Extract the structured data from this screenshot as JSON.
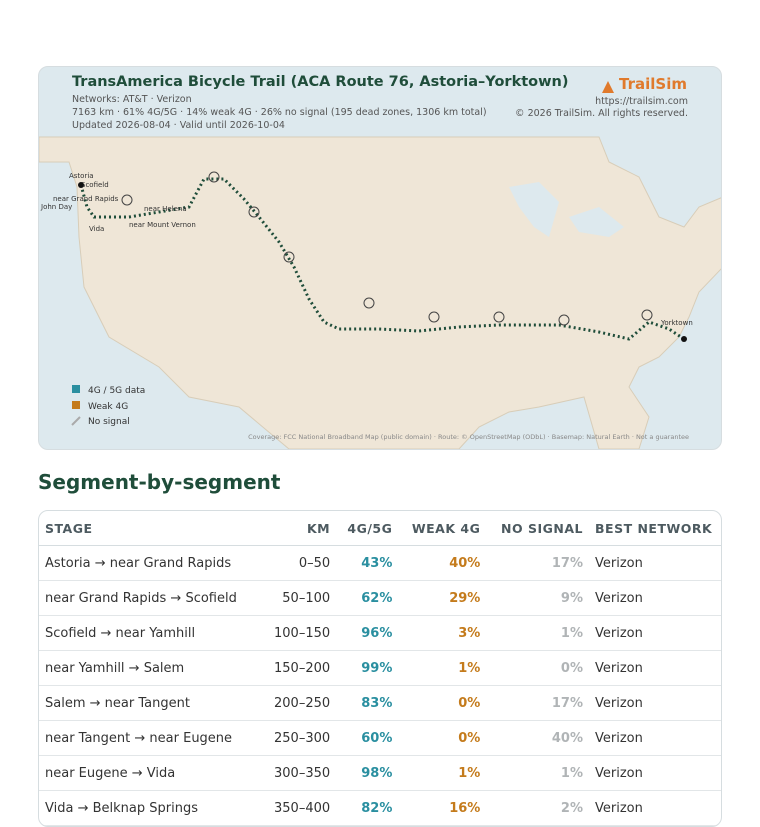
{
  "header": {
    "title": "TransAmerica Bicycle Trail (ACA Route 76, Astoria–Yorktown)",
    "networks": "Networks: AT&T · Verizon",
    "stats": "7163 km · 61% 4G/5G · 14% weak 4G · 26% no signal (195 dead zones, 1306 km total)",
    "updated": "Updated 2026-08-04 · Valid until 2026-10-04",
    "brand": "TrailSim",
    "url": "https://trailsim.com",
    "copyright": "© 2026 TrailSim. All rights reserved."
  },
  "map": {
    "labels": [
      "Astoria",
      "Scofield",
      "near Grand Rapids",
      "John Day",
      "near Helena",
      "Vida",
      "near Mount Vernon",
      "Yorktown"
    ],
    "legend": [
      "4G / 5G data",
      "Weak 4G",
      "No signal"
    ],
    "footer": "Coverage: FCC National Broadband Map (public domain) · Route: © OpenStreetMap (ODbL) · Basemap: Natural Earth · Not a guarantee"
  },
  "section_title": "Segment-by-segment",
  "table": {
    "headers": [
      "STAGE",
      "KM",
      "4G/5G",
      "WEAK 4G",
      "NO SIGNAL",
      "BEST NETWORK"
    ],
    "rows": [
      [
        "Astoria → near Grand Rapids",
        "0–50",
        "43%",
        "40%",
        "17%",
        "Verizon"
      ],
      [
        "near Grand Rapids → Scofield",
        "50–100",
        "62%",
        "29%",
        "9%",
        "Verizon"
      ],
      [
        "Scofield → near Yamhill",
        "100–150",
        "96%",
        "3%",
        "1%",
        "Verizon"
      ],
      [
        "near Yamhill → Salem",
        "150–200",
        "99%",
        "1%",
        "0%",
        "Verizon"
      ],
      [
        "Salem → near Tangent",
        "200–250",
        "83%",
        "0%",
        "17%",
        "Verizon"
      ],
      [
        "near Tangent → near Eugene",
        "250–300",
        "60%",
        "0%",
        "40%",
        "Verizon"
      ],
      [
        "near Eugene → Vida",
        "300–350",
        "98%",
        "1%",
        "1%",
        "Verizon"
      ],
      [
        "Vida → Belknap Springs",
        "350–400",
        "82%",
        "16%",
        "2%",
        "Verizon"
      ]
    ]
  }
}
